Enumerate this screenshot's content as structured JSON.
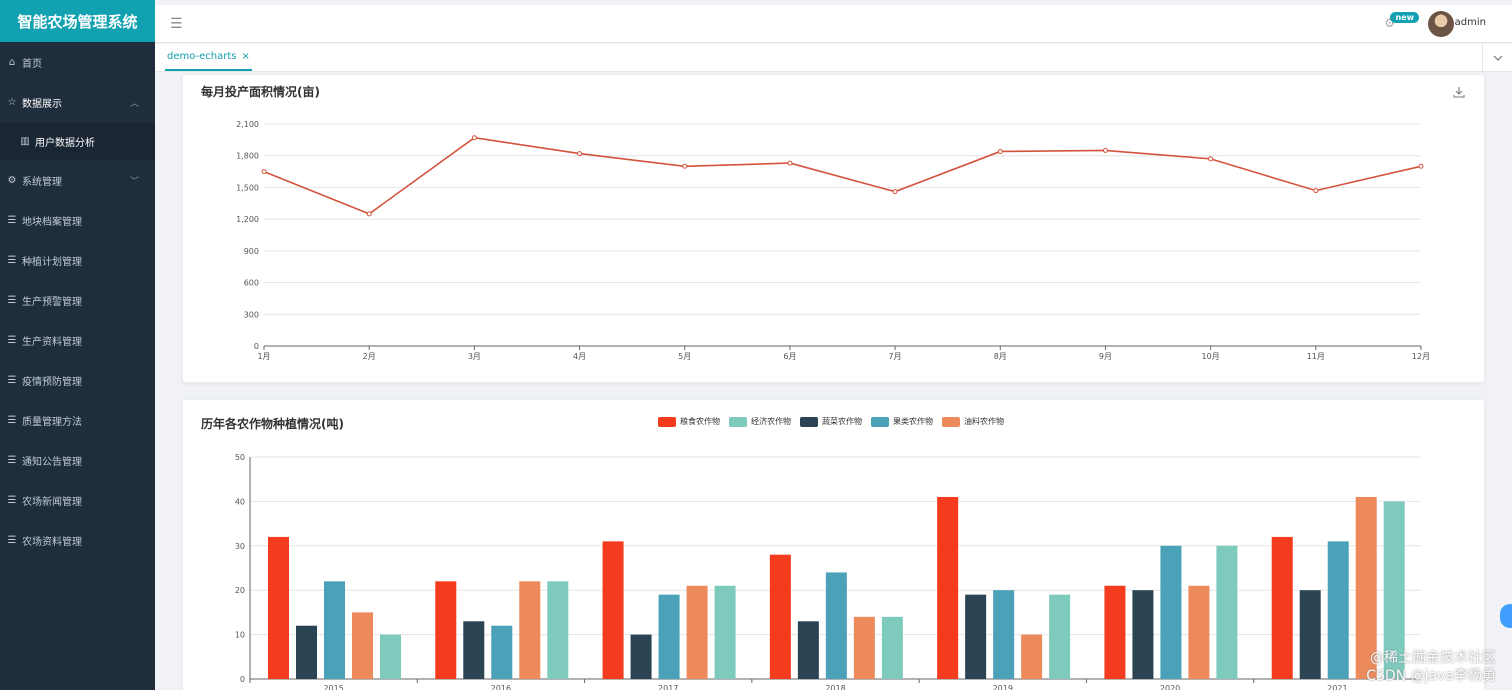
{
  "app": {
    "title": "智能农场管理系统"
  },
  "header": {
    "badge": "new",
    "username": "admin"
  },
  "tabs": [
    {
      "label": "demo-echarts",
      "close": "×"
    }
  ],
  "sidebar": {
    "items": [
      {
        "label": "首页",
        "icon": "home-icon"
      },
      {
        "label": "数据展示",
        "icon": "star-icon",
        "expanded": true,
        "children": [
          {
            "label": "用户数据分析",
            "icon": "bar-chart-icon"
          }
        ]
      },
      {
        "label": "系统管理",
        "icon": "gear-icon",
        "expanded": false
      },
      {
        "label": "地块档案管理",
        "icon": "list-icon"
      },
      {
        "label": "种植计划管理",
        "icon": "list-icon"
      },
      {
        "label": "生产预警管理",
        "icon": "list-icon"
      },
      {
        "label": "生产资料管理",
        "icon": "list-icon"
      },
      {
        "label": "疫情预防管理",
        "icon": "list-icon"
      },
      {
        "label": "质量管理方法",
        "icon": "list-icon"
      },
      {
        "label": "通知公告管理",
        "icon": "list-icon"
      },
      {
        "label": "农场新闻管理",
        "icon": "list-icon"
      },
      {
        "label": "农场资料管理",
        "icon": "list-icon"
      }
    ]
  },
  "watermark": {
    "line1": "@稀土掘金技术社区",
    "line2": "CSDN @java李杨勇"
  },
  "chart_data": [
    {
      "type": "line",
      "title": "每月投产面积情况(亩)",
      "categories": [
        "1月",
        "2月",
        "3月",
        "4月",
        "5月",
        "6月",
        "7月",
        "8月",
        "9月",
        "10月",
        "11月",
        "12月"
      ],
      "values": [
        1650,
        1250,
        1970,
        1820,
        1700,
        1730,
        1460,
        1840,
        1850,
        1770,
        1470,
        1700
      ],
      "ylim": [
        0,
        2100
      ],
      "yticks": [
        "0",
        "300",
        "600",
        "900",
        "1,200",
        "1,500",
        "1,800",
        "2,100"
      ],
      "color": "#d4523c",
      "grid": true
    },
    {
      "type": "bar",
      "title": "历年各农作物种植情况(吨)",
      "categories": [
        "2015",
        "2016",
        "2017",
        "2018",
        "2019",
        "2020",
        "2021"
      ],
      "ylim": [
        0,
        50
      ],
      "yticks": [
        "0",
        "10",
        "20",
        "30",
        "40",
        "50"
      ],
      "legend_position": "top-center",
      "legend": [
        {
          "name": "粮食农作物",
          "color": "#f43b1d"
        },
        {
          "name": "经济农作物",
          "color": "#7ecabd"
        },
        {
          "name": "蔬菜农作物",
          "color": "#2b4453"
        },
        {
          "name": "果类农作物",
          "color": "#4ba2b8"
        },
        {
          "name": "油料农作物",
          "color": "#ed8a5c"
        }
      ],
      "series": [
        {
          "values": [
            32,
            22,
            31,
            28,
            41,
            21,
            32
          ],
          "color": "#f43b1d"
        },
        {
          "values": [
            12,
            13,
            10,
            13,
            19,
            20,
            20
          ],
          "color": "#2b4453"
        },
        {
          "values": [
            22,
            12,
            19,
            24,
            20,
            30,
            31
          ],
          "color": "#4ba2b8"
        },
        {
          "values": [
            15,
            22,
            21,
            14,
            10,
            21,
            41
          ],
          "color": "#ed8a5c"
        },
        {
          "values": [
            10,
            22,
            21,
            14,
            19,
            30,
            40
          ],
          "color": "#7ecabd"
        }
      ],
      "grid": true
    }
  ]
}
